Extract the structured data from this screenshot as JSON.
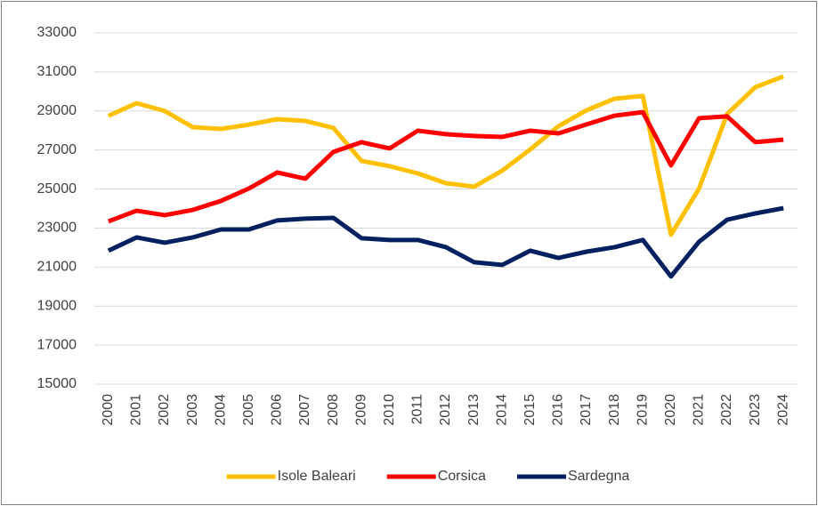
{
  "chart_data": {
    "type": "line",
    "x": [
      "2000",
      "2001",
      "2002",
      "2003",
      "2004",
      "2005",
      "2006",
      "2007",
      "2008",
      "2009",
      "2010",
      "2011",
      "2012",
      "2013",
      "2014",
      "2015",
      "2016",
      "2017",
      "2018",
      "2019",
      "2020",
      "2021",
      "2022",
      "2023",
      "2024"
    ],
    "series": [
      {
        "name": "Isole Baleari",
        "color": "#ffc000",
        "values": [
          28750,
          29400,
          29000,
          28170,
          28080,
          28300,
          28580,
          28490,
          28130,
          26440,
          26170,
          25800,
          25300,
          25120,
          25940,
          27030,
          28220,
          29040,
          29630,
          29770,
          22660,
          25030,
          28850,
          30220,
          30770
        ]
      },
      {
        "name": "Corsica",
        "color": "#ff0000",
        "values": [
          23340,
          23890,
          23660,
          23930,
          24390,
          25030,
          25850,
          25530,
          26900,
          27400,
          27080,
          27990,
          27810,
          27720,
          27670,
          27990,
          27850,
          28310,
          28760,
          28940,
          26210,
          28630,
          28720,
          27400,
          27530
        ]
      },
      {
        "name": "Sardegna",
        "color": "#002060",
        "values": [
          21840,
          22520,
          22250,
          22520,
          22930,
          22930,
          23390,
          23480,
          23520,
          22480,
          22390,
          22390,
          22020,
          21250,
          21110,
          21840,
          21470,
          21790,
          22020,
          22390,
          20520,
          22300,
          23430,
          23750,
          24020
        ]
      }
    ],
    "ylim": [
      15000,
      33000
    ],
    "yticks": [
      15000,
      17000,
      19000,
      21000,
      23000,
      25000,
      27000,
      29000,
      31000,
      33000
    ],
    "grid": true,
    "legend": "bottom"
  }
}
